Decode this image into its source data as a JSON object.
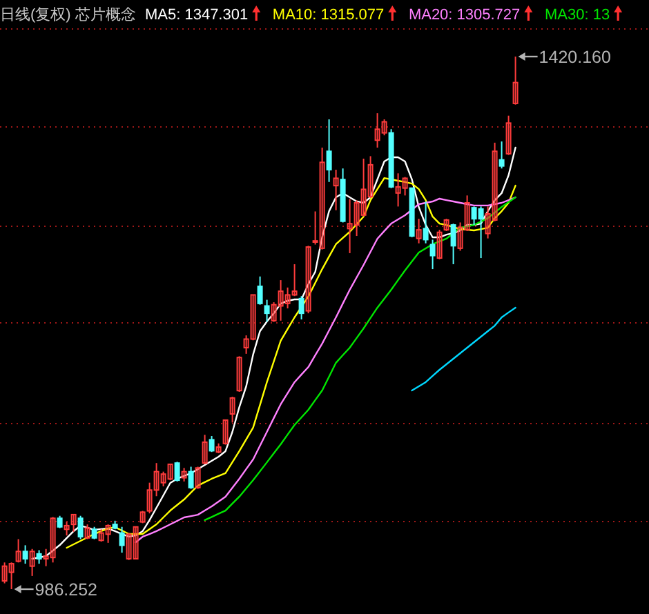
{
  "chart_data": {
    "type": "candlestick",
    "title": "日线(复权)  芯片概念",
    "legend": "top",
    "grid": "y",
    "tick_labels": false,
    "yticks": [
      {
        "value": 1041.3,
        "label": null
      },
      {
        "value": 1121.1,
        "label": null
      },
      {
        "value": 1203.2,
        "label": null
      },
      {
        "value": 1281.9,
        "label": null
      },
      {
        "value": 1362.8,
        "label": null
      },
      {
        "value": 1442.6,
        "label": null
      }
    ],
    "categories": [
      null,
      null,
      null,
      null,
      null,
      null,
      null,
      null,
      null,
      null,
      null,
      null,
      null,
      null,
      null,
      null,
      null,
      null,
      null,
      null,
      null,
      null,
      null,
      null,
      null,
      null,
      null,
      null,
      null,
      null,
      null,
      null,
      null,
      null,
      null,
      null,
      null,
      null,
      null,
      null,
      null,
      null,
      null,
      null,
      null,
      null,
      null,
      null,
      null,
      null,
      null,
      null,
      null,
      null,
      null,
      null,
      null,
      null,
      null,
      null,
      null,
      null,
      null,
      null,
      null,
      null,
      null,
      null,
      null,
      null,
      null,
      null,
      null,
      null,
      null
    ],
    "ohlc": [
      [
        993,
        1008,
        991,
        1005
      ],
      [
        1000,
        1008,
        986.252,
        1007
      ],
      [
        1009,
        1027,
        1008,
        1017
      ],
      [
        1017,
        1022,
        1007,
        1011
      ],
      [
        1005,
        1019,
        997,
        1017
      ],
      [
        1015,
        1018,
        1007,
        1011
      ],
      [
        1011,
        1019,
        1005,
        1013
      ],
      [
        1012,
        1045,
        1008,
        1044
      ],
      [
        1044,
        1046,
        1036,
        1037
      ],
      [
        1035,
        1041,
        1030,
        1038
      ],
      [
        1039,
        1047,
        1033,
        1047
      ],
      [
        1044,
        1046,
        1027,
        1029
      ],
      [
        1028,
        1039,
        1027,
        1036
      ],
      [
        1035,
        1037,
        1027,
        1028
      ],
      [
        1026,
        1035,
        1025,
        1032
      ],
      [
        1031,
        1039,
        1024,
        1038
      ],
      [
        1039,
        1042,
        1035,
        1036
      ],
      [
        1032,
        1037,
        1016,
        1022
      ],
      [
        1011,
        1032,
        1010,
        1031
      ],
      [
        1011,
        1037,
        1011,
        1037
      ],
      [
        1041,
        1050,
        1040,
        1049
      ],
      [
        1050,
        1073,
        1048,
        1067
      ],
      [
        1067,
        1089,
        1062,
        1082
      ],
      [
        1073,
        1082,
        1070,
        1080
      ],
      [
        1076,
        1088,
        1075,
        1088
      ],
      [
        1089,
        1090,
        1074,
        1075
      ],
      [
        1077,
        1085,
        1074,
        1082
      ],
      [
        1082,
        1086,
        1068,
        1069
      ],
      [
        1069,
        1086,
        1068,
        1085
      ],
      [
        1089,
        1112,
        1088,
        1106
      ],
      [
        1108,
        1111,
        1098,
        1099
      ],
      [
        1098,
        1105,
        1097,
        1102
      ],
      [
        1105,
        1124,
        1104,
        1124
      ],
      [
        1129,
        1143,
        1122,
        1142
      ],
      [
        1148,
        1176,
        1147,
        1175
      ],
      [
        1183,
        1193,
        1178,
        1190
      ],
      [
        1190,
        1226,
        1189,
        1226
      ],
      [
        1233,
        1241,
        1218,
        1219
      ],
      [
        1217,
        1222,
        1204,
        1211
      ],
      [
        1205,
        1220,
        1204,
        1218
      ],
      [
        1217,
        1238,
        1205,
        1229
      ],
      [
        1219,
        1232,
        1215,
        1226
      ],
      [
        1226,
        1251,
        1225,
        1229
      ],
      [
        1223,
        1225,
        1206,
        1211
      ],
      [
        1213,
        1266,
        1211,
        1265
      ],
      [
        1269,
        1294,
        1267,
        1270
      ],
      [
        1264,
        1346,
        1263,
        1334
      ],
      [
        1343,
        1369,
        1318,
        1328
      ],
      [
        1315,
        1328,
        1295,
        1321
      ],
      [
        1320,
        1329,
        1285,
        1286
      ],
      [
        1280,
        1304,
        1260,
        1284
      ],
      [
        1283,
        1303,
        1274,
        1301
      ],
      [
        1291,
        1337,
        1290,
        1312
      ],
      [
        1306,
        1339,
        1305,
        1332
      ],
      [
        1352,
        1374,
        1346,
        1361
      ],
      [
        1358,
        1369,
        1356,
        1367
      ],
      [
        1358,
        1361,
        1313,
        1314
      ],
      [
        1309,
        1325,
        1298,
        1314
      ],
      [
        1313,
        1322,
        1307,
        1321
      ],
      [
        1313,
        1313,
        1273,
        1274
      ],
      [
        1272,
        1288,
        1268,
        1279
      ],
      [
        1280,
        1302,
        1268,
        1271
      ],
      [
        1267,
        1271,
        1247,
        1258
      ],
      [
        1256,
        1279,
        1255,
        1277
      ],
      [
        1279,
        1288,
        1278,
        1287
      ],
      [
        1283,
        1284,
        1251,
        1266
      ],
      [
        1264,
        1285,
        1262,
        1281
      ],
      [
        1279,
        1307,
        1278,
        1301
      ],
      [
        1297,
        1298,
        1283,
        1288
      ],
      [
        1296,
        1298,
        1256,
        1288
      ],
      [
        1276,
        1298,
        1272,
        1292
      ],
      [
        1287,
        1350,
        1286,
        1343
      ],
      [
        1336,
        1351,
        1329,
        1331
      ],
      [
        1341,
        1372,
        1340,
        1366
      ],
      [
        1382,
        1420.16,
        1381,
        1399
      ]
    ],
    "series": [
      {
        "type": "line",
        "name": "MA5: 1347.301",
        "color": "#ffffff",
        "values": [
          null,
          null,
          null,
          null,
          1011.0,
          1012.1,
          1013.2,
          1017.7,
          1022.2,
          1027.9,
          1033.5,
          1038.0,
          1036.3,
          1034.6,
          1035.2,
          1035.7,
          1033.5,
          1031.2,
          1029.0,
          1030.1,
          1033.5,
          1042.5,
          1052.6,
          1062.7,
          1072.8,
          1076.2,
          1078.5,
          1080.7,
          1084.1,
          1087.4,
          1090.8,
          1094.2,
          1098.7,
          1114.4,
          1134.6,
          1151.5,
          1177.4,
          1196.5,
          1204.3,
          1211.1,
          1218.9,
          1221.2,
          1222.3,
          1222.3,
          1234.7,
          1244.8,
          1272.9,
          1294.2,
          1305.5,
          1308.9,
          1305.5,
          1302.1,
          1301.0,
          1305.5,
          1320.1,
          1334.7,
          1338.1,
          1338.1,
          1334.7,
          1320.1,
          1297.6,
          1283.0,
          1272.9,
          1272.9,
          1275.1,
          1276.3,
          1278.5,
          1283.0,
          1283.0,
          1284.1,
          1294.2,
          1303.2,
          1308.9,
          1323.5,
          1346.0
        ]
      },
      {
        "type": "line",
        "name": "MA10: 1315.077",
        "color": "#ffff00",
        "values": [
          null,
          null,
          null,
          null,
          null,
          null,
          null,
          null,
          null,
          1020.0,
          1022.8,
          1025.6,
          1028.4,
          1031.2,
          1033.5,
          1035.7,
          1036.8,
          1034.0,
          1031.2,
          1031.2,
          1031.2,
          1035.2,
          1039.1,
          1044.7,
          1050.3,
          1054.8,
          1059.3,
          1065.0,
          1070.6,
          1073.4,
          1076.2,
          1078.5,
          1080.7,
          1089.7,
          1098.7,
          1108.3,
          1117.8,
          1136.4,
          1154.9,
          1171.8,
          1188.6,
          1198.2,
          1207.7,
          1216.2,
          1224.6,
          1235.8,
          1247.0,
          1257.2,
          1267.3,
          1272.4,
          1277.4,
          1283.6,
          1289.8,
          1303.2,
          1312.2,
          1321.2,
          1320.1,
          1319.0,
          1317.9,
          1316.7,
          1312.2,
          1303.2,
          1289.8,
          1284.1,
          1283.0,
          1281.3,
          1279.6,
          1279.1,
          1278.5,
          1279.6,
          1280.7,
          1288.6,
          1294.2,
          1301.0,
          1315
        ]
      },
      {
        "type": "line",
        "name": "MA20: 1305.727",
        "color": "#ff80ff",
        "values": [
          null,
          null,
          null,
          null,
          null,
          null,
          null,
          null,
          null,
          null,
          null,
          null,
          null,
          null,
          null,
          null,
          null,
          null,
          null,
          1024.5,
          1029.0,
          1031.2,
          1033.5,
          1036.3,
          1039.1,
          1041.9,
          1044.7,
          1045.8,
          1046.9,
          1050.3,
          1053.7,
          1057.6,
          1061.6,
          1068.9,
          1076.2,
          1084.1,
          1091.9,
          1103.2,
          1114.4,
          1125.7,
          1136.9,
          1145.9,
          1154.9,
          1161.1,
          1167.2,
          1176.8,
          1186.3,
          1197.0,
          1207.7,
          1219.0,
          1230.2,
          1240.3,
          1250.4,
          1261.1,
          1271.8,
          1278.0,
          1284.1,
          1287.5,
          1290.9,
          1295.4,
          1299.9,
          1301.0,
          1302.1,
          1304.4,
          1303.2,
          1302.1,
          1301.0,
          1299.9,
          1298.8,
          1298.8,
          1298.8,
          1299.9,
          1301.0,
          1303.2,
          1305.5
        ]
      },
      {
        "type": "line",
        "name": "MA30: 13",
        "color": "#00e600",
        "values": [
          null,
          null,
          null,
          null,
          null,
          null,
          null,
          null,
          null,
          null,
          null,
          null,
          null,
          null,
          null,
          null,
          null,
          null,
          null,
          null,
          null,
          null,
          null,
          null,
          null,
          null,
          null,
          null,
          null,
          1042.5,
          1045.1,
          1047.7,
          1050.3,
          1056.0,
          1061.6,
          1068.3,
          1075.0,
          1082.3,
          1089.6,
          1097.0,
          1104.3,
          1112.2,
          1120.0,
          1126.2,
          1132.4,
          1140.3,
          1148.1,
          1159.4,
          1170.7,
          1176.9,
          1183.0,
          1190.9,
          1198.7,
          1207.2,
          1215.6,
          1222.9,
          1230.2,
          1238.1,
          1245.9,
          1253.2,
          1260.5,
          1263.9,
          1267.3,
          1269.6,
          1271.8,
          1276.3,
          1280.7,
          1281.9,
          1283.0,
          1285.8,
          1288.6,
          1293.1,
          1297.6,
          1301.6,
          1305.5
        ]
      },
      {
        "type": "line",
        "color": "#00d8ff",
        "values": [
          null,
          null,
          null,
          null,
          null,
          null,
          null,
          null,
          null,
          null,
          null,
          null,
          null,
          null,
          null,
          null,
          null,
          null,
          null,
          null,
          null,
          null,
          null,
          null,
          null,
          null,
          null,
          null,
          null,
          null,
          null,
          null,
          null,
          null,
          null,
          null,
          null,
          null,
          null,
          null,
          null,
          null,
          null,
          null,
          null,
          null,
          null,
          null,
          null,
          null,
          null,
          null,
          null,
          null,
          null,
          null,
          null,
          null,
          null,
          1148.1,
          1151.5,
          1154.9,
          1160.0,
          1165.0,
          1169.5,
          1174.0,
          1178.5,
          1183.0,
          1187.5,
          1192.0,
          1196.5,
          1200.9,
          1207.7,
          1211.7,
          1215.6
        ]
      }
    ],
    "annotations": [
      "1420.160",
      "986.252"
    ]
  }
}
